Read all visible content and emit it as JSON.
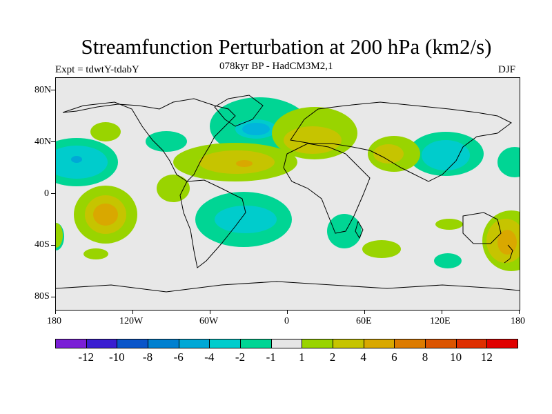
{
  "title": "Streamfunction Perturbation at 200 hPa (km2/s)",
  "experiment": "Expt = tdwtY-tdabY",
  "period": "078kyr BP - HadCM3M2,1",
  "season": "DJF",
  "lat_ticks": [
    "80N",
    "40N",
    "0",
    "40S",
    "80S"
  ],
  "lon_ticks": [
    "180",
    "120W",
    "60W",
    "0",
    "60E",
    "120E",
    "180"
  ],
  "colorbar": {
    "labels": [
      "-12",
      "-10",
      "-8",
      "-6",
      "-4",
      "-2",
      "-1",
      "1",
      "2",
      "4",
      "6",
      "8",
      "10",
      "12"
    ],
    "colors": [
      "#7a1fd6",
      "#3a1ed1",
      "#0a55c9",
      "#0080d0",
      "#00a8d6",
      "#00cccc",
      "#00d594",
      "#e6e6e6",
      "#99d400",
      "#c6c400",
      "#d9a800",
      "#dc7b00",
      "#db5400",
      "#de2e00",
      "#e00000"
    ]
  },
  "map_data": {
    "type": "contour_map",
    "projection": "cylindrical-equidistant",
    "lon_range": [
      -180,
      180
    ],
    "lat_range": [
      -90,
      90
    ],
    "features": [
      {
        "name": "north-atlantic-low",
        "lon": -25,
        "lat": 52,
        "value": -4
      },
      {
        "name": "pacific-ne-low",
        "lon": -150,
        "lat": 25,
        "value": -4
      },
      {
        "name": "east-asia-low",
        "lon": 125,
        "lat": 32,
        "value": -4
      },
      {
        "name": "south-atlantic-low",
        "lon": -35,
        "lat": -20,
        "value": -2
      },
      {
        "name": "subtropical-atlantic-high",
        "lon": -35,
        "lat": 25,
        "value": 4
      },
      {
        "name": "europe-high",
        "lon": 20,
        "lat": 45,
        "value": 4
      },
      {
        "name": "central-asia-high",
        "lon": 80,
        "lat": 35,
        "value": 4
      },
      {
        "name": "south-pacific-high",
        "lon": -145,
        "lat": -15,
        "value": 4
      },
      {
        "name": "australia-nz-high",
        "lon": 165,
        "lat": -35,
        "value": 4
      }
    ]
  }
}
